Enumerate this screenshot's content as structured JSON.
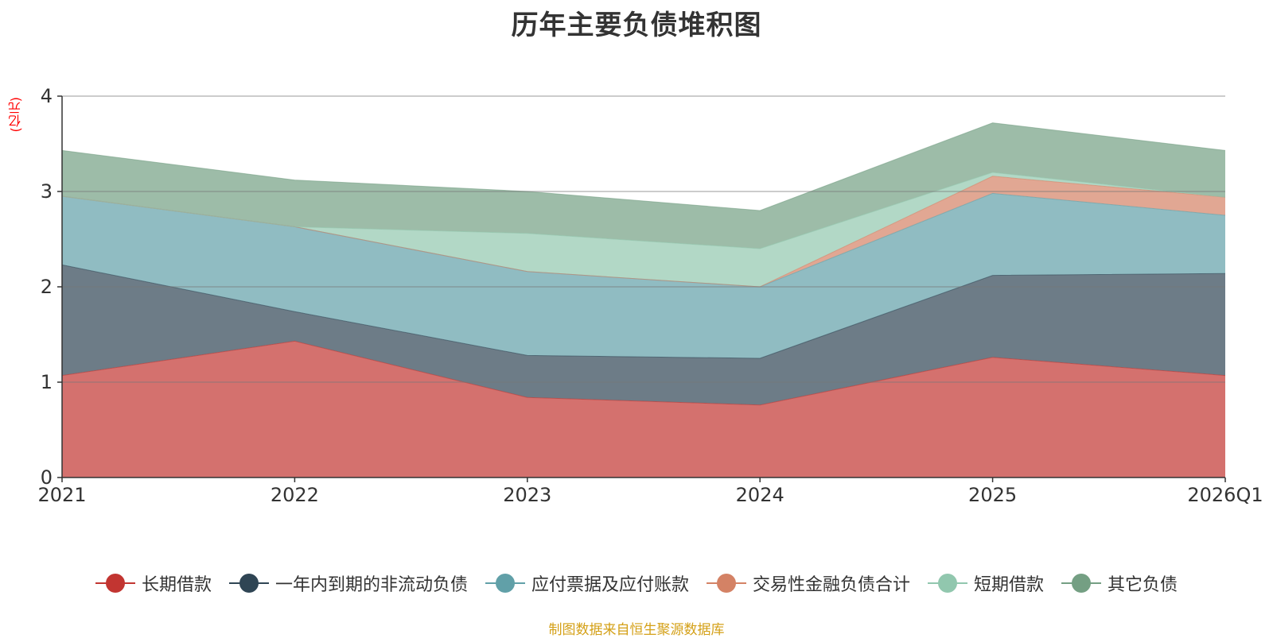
{
  "title": "历年主要负债堆积图",
  "unit_label": "(亿元)",
  "source_note": "制图数据来自恒生聚源数据库",
  "chart_data": {
    "type": "area",
    "stacked": true,
    "title": "历年主要负债堆积图",
    "ylabel": "(亿元)",
    "xlabel": "",
    "categories": [
      "2021",
      "2022",
      "2023",
      "2024",
      "2025",
      "2026Q1"
    ],
    "ylim": [
      0,
      4
    ],
    "yticks": [
      0,
      1,
      2,
      3,
      4
    ],
    "grid": true,
    "legend_position": "bottom",
    "series": [
      {
        "name": "长期借款",
        "color": "#c23531",
        "values": [
          1.07,
          1.43,
          0.84,
          0.76,
          1.26,
          1.07
        ]
      },
      {
        "name": "一年内到期的非流动负债",
        "color": "#2f4554",
        "values": [
          1.16,
          0.31,
          0.44,
          0.49,
          0.86,
          1.07
        ]
      },
      {
        "name": "应付票据及应付账款",
        "color": "#61a0a8",
        "values": [
          0.72,
          0.89,
          0.88,
          0.75,
          0.86,
          0.61
        ]
      },
      {
        "name": "交易性金融负债合计",
        "color": "#d48265",
        "values": [
          0,
          0,
          0,
          0,
          0.18,
          0.19
        ]
      },
      {
        "name": "短期借款",
        "color": "#91c7ae",
        "values": [
          0,
          0,
          0.4,
          0.4,
          0.04,
          0
        ]
      },
      {
        "name": "其它负债",
        "color": "#749f83",
        "values": [
          0.48,
          0.49,
          0.44,
          0.4,
          0.52,
          0.49
        ]
      }
    ]
  }
}
